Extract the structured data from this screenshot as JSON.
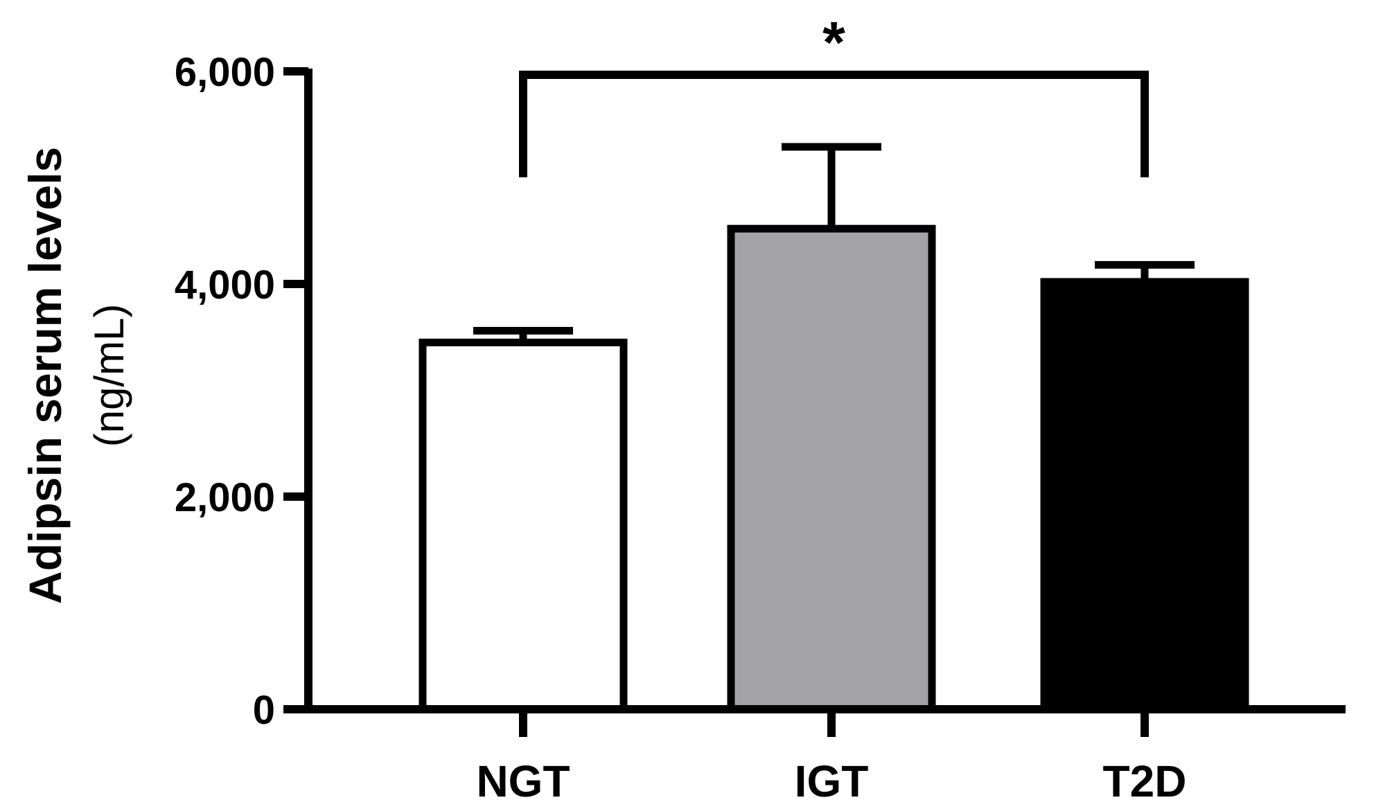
{
  "chart_data": {
    "type": "bar",
    "categories": [
      "NGT",
      "IGT",
      "T2D"
    ],
    "values": [
      3450,
      4520,
      4020
    ],
    "error": [
      110,
      770,
      160
    ],
    "bar_colors": [
      "#ffffff",
      "#a3a2a7",
      "#000000"
    ],
    "ylabel": "Adipsin serum levels",
    "ylabel_unit": "(ng/mL)",
    "ylim": [
      0,
      6000
    ],
    "yticks": [
      0,
      2000,
      4000,
      6000
    ],
    "ytick_labels": [
      "0",
      "2,000",
      "4,000",
      "6,000"
    ],
    "grid": false,
    "significance": {
      "from": "NGT",
      "to": "T2D",
      "label": "*"
    }
  }
}
